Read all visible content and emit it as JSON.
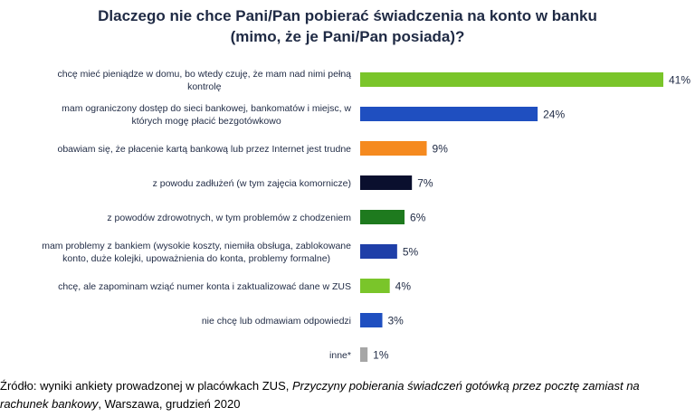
{
  "chart_data": {
    "type": "bar",
    "orientation": "horizontal",
    "title_line1": "Dlaczego nie chce Pani/Pan pobierać świadczenia na konto w banku",
    "title_line2": "(mimo, że je Pani/Pan posiada)?",
    "xlim": [
      0,
      41
    ],
    "grid": false,
    "categories": [
      [
        "chcę mieć pieniądze w domu, bo wtedy czuję, że mam nad nimi pełną",
        "kontrolę"
      ],
      [
        "mam ograniczony dostęp do sieci bankowej, bankomatów i miejsc, w",
        "których mogę płacić bezgotówkowo"
      ],
      [
        "obawiam się, że płacenie kartą bankową lub przez Internet jest trudne"
      ],
      [
        "z powodu zadłużeń (w tym zajęcia komornicze)"
      ],
      [
        "z powodów zdrowotnych, w tym problemów z chodzeniem"
      ],
      [
        "mam problemy z bankiem (wysokie koszty, niemiła obsługa, zablokowane",
        "konto, duże kolejki, upoważnienia do konta, problemy formalne)"
      ],
      [
        "chcę, ale zapominam wziąć numer konta i zaktualizować dane w ZUS"
      ],
      [
        "nie chcę lub odmawiam odpowiedzi"
      ],
      [
        "inne*"
      ]
    ],
    "values": [
      41,
      24,
      9,
      7,
      6,
      5,
      4,
      3,
      1
    ],
    "value_labels": [
      "41%",
      "24%",
      "9%",
      "7%",
      "6%",
      "5%",
      "4%",
      "3%",
      "1%"
    ],
    "colors": [
      "#7ac52a",
      "#1f4fc0",
      "#f58a1f",
      "#0a0f2e",
      "#1e7a1e",
      "#1f3fa8",
      "#7ac52a",
      "#1f4fc0",
      "#a6a6a6"
    ]
  },
  "source": {
    "prefix": "Źródło: wyniki ankiety prowadzonej w placówkach ZUS, ",
    "italic1": "Przyczyny pobierania świadczeń gotówką przez pocztę zamiast na",
    "italic2": "rachunek bankowy",
    "suffix": ", Warszawa, grudzień 2020"
  }
}
